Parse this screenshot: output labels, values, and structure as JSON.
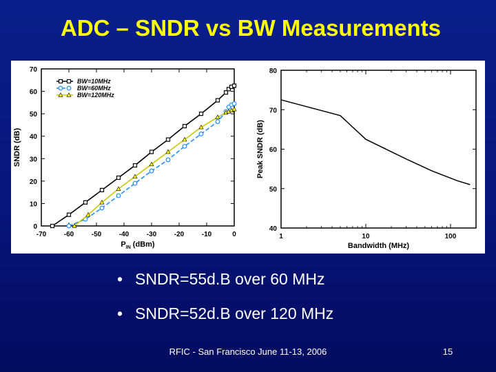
{
  "slide": {
    "title": "ADC – SNDR vs BW Measurements",
    "bullets": [
      "SNDR=55d.B over 60 MHz",
      "SNDR=52d.B over 120 MHz"
    ],
    "footer": "RFIC - San Francisco June 11-13, 2006",
    "page_number": "15"
  },
  "colors": {
    "background": "#07147a",
    "title": "#ffff00",
    "text": "#ffffff",
    "accent_blue": "#1f8fff",
    "yellow": "#ffff00"
  },
  "chart_data": [
    {
      "type": "line",
      "xlabel": "P",
      "xlabel_sub": "IN",
      "xlabel_unit": "(dBm)",
      "ylabel": "SNDR (dB)",
      "xlim": [
        -70,
        0
      ],
      "ylim": [
        0,
        70
      ],
      "xticks": [
        -70,
        -60,
        -50,
        -40,
        -30,
        -20,
        -10,
        0
      ],
      "yticks": [
        0,
        10,
        20,
        30,
        40,
        50,
        60,
        70
      ],
      "grid": false,
      "legend_position": "top-left",
      "series": [
        {
          "name": "BW=10MHz",
          "color": "#000000",
          "marker": "square",
          "dash": false,
          "x": [
            -66,
            -60,
            -54,
            -48,
            -42,
            -36,
            -30,
            -24,
            -18,
            -12,
            -6,
            -3,
            -2,
            -1,
            0
          ],
          "y": [
            0,
            5,
            10.5,
            16,
            21.5,
            27,
            33,
            38.5,
            44.5,
            50,
            56,
            59.5,
            61,
            62,
            62.5
          ]
        },
        {
          "name": "BW=60MHz",
          "color": "#1f8fff",
          "marker": "circle",
          "dash": true,
          "x": [
            -60,
            -54,
            -48,
            -42,
            -36,
            -30,
            -24,
            -18,
            -12,
            -6,
            -3,
            -2,
            -1,
            0
          ],
          "y": [
            0,
            3,
            8,
            13.5,
            19,
            24.5,
            29.5,
            35.5,
            41,
            46.5,
            51,
            53,
            54,
            54.5
          ]
        },
        {
          "name": "BW=120MHz",
          "color": "#ffff00",
          "marker": "triangle",
          "dash": false,
          "x": [
            -58,
            -53,
            -48,
            -42,
            -36,
            -30,
            -24,
            -18,
            -12,
            -6,
            -3,
            -2,
            -1,
            0
          ],
          "y": [
            0,
            5,
            10.5,
            16.5,
            22,
            27.5,
            33,
            38.5,
            44,
            48.5,
            50.5,
            51,
            51.5,
            52
          ]
        }
      ]
    },
    {
      "type": "line",
      "xlabel": "Bandwidth (MHz)",
      "ylabel": "Peak SNDR (dB)",
      "xscale": "log",
      "xlim": [
        1,
        200
      ],
      "ylim": [
        40,
        80
      ],
      "xticks": [
        1,
        10,
        100
      ],
      "yticks": [
        40,
        50,
        60,
        70,
        80
      ],
      "grid": false,
      "series": [
        {
          "color": "#000000",
          "x": [
            1,
            5,
            10,
            30,
            60,
            120,
            170
          ],
          "y": [
            72.5,
            68.5,
            62.5,
            57.5,
            54.5,
            52,
            51
          ]
        }
      ]
    }
  ]
}
